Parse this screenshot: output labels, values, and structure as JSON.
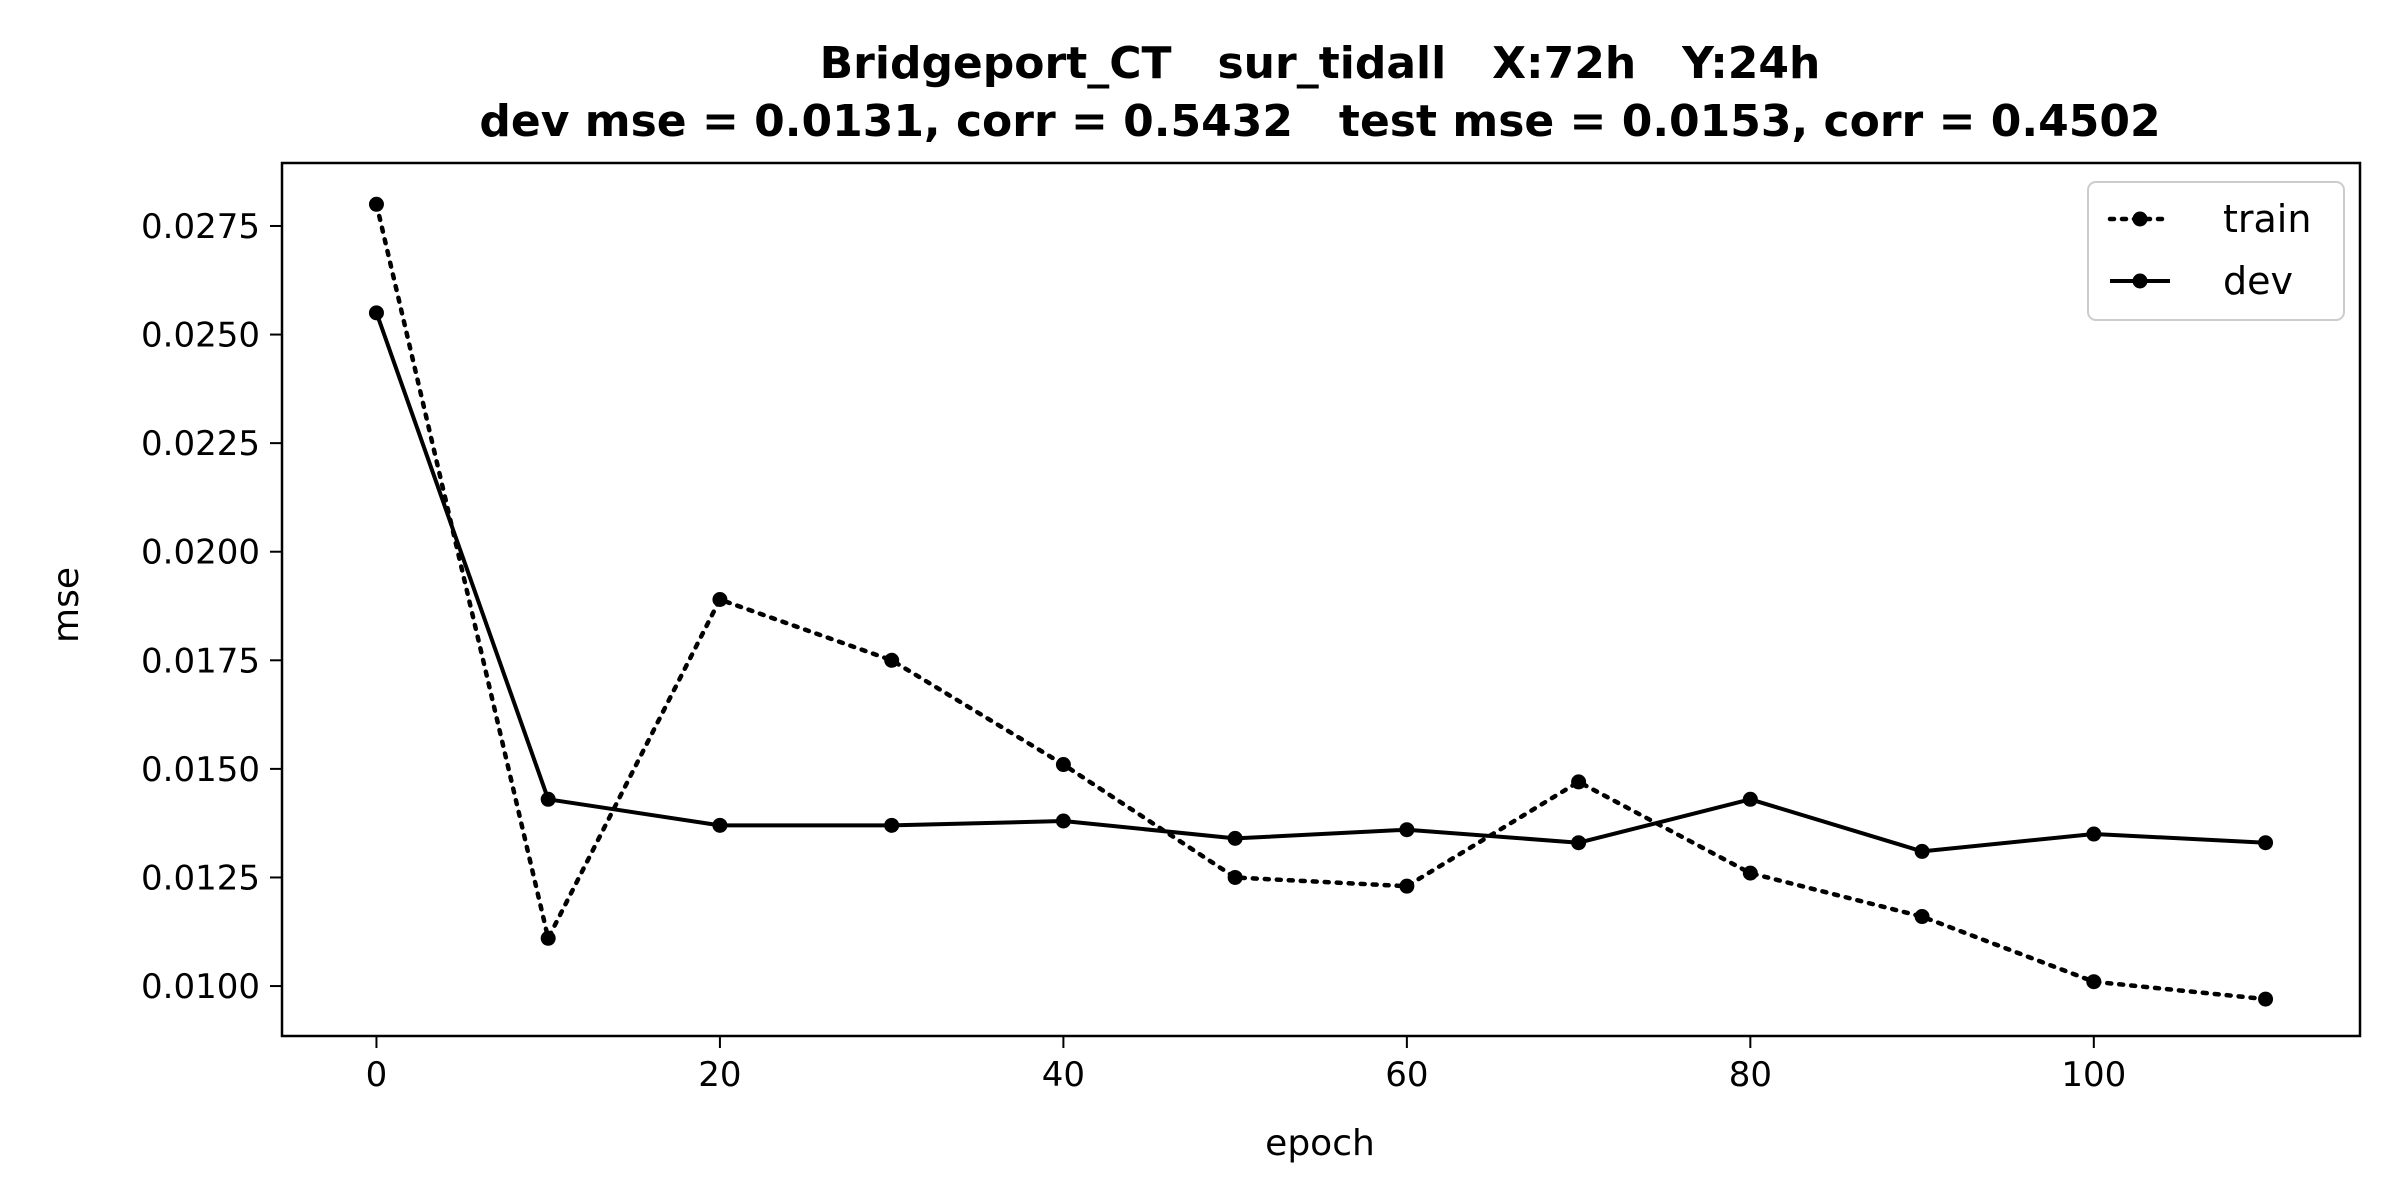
{
  "chart_data": {
    "type": "line",
    "title": "Bridgeport_CT   sur_tidall   X:72h   Y:24h",
    "subtitle": "dev mse = 0.0131, corr = 0.5432   test mse = 0.0153, corr = 0.4502",
    "xlabel": "epoch",
    "ylabel": "mse",
    "xlim": [
      -5.5,
      115.5
    ],
    "ylim": [
      0.00885,
      0.02895
    ],
    "x_ticks": [
      0,
      20,
      40,
      60,
      80,
      100
    ],
    "x_tick_labels": [
      "0",
      "20",
      "40",
      "60",
      "80",
      "100"
    ],
    "y_ticks": [
      0.01,
      0.0125,
      0.015,
      0.0175,
      0.02,
      0.0225,
      0.025,
      0.0275
    ],
    "y_tick_labels": [
      "0.0100",
      "0.0125",
      "0.0150",
      "0.0175",
      "0.0200",
      "0.0225",
      "0.0250",
      "0.0275"
    ],
    "grid": false,
    "legend_position": "top-right",
    "x": [
      0,
      10,
      20,
      30,
      40,
      50,
      60,
      70,
      80,
      90,
      100,
      110
    ],
    "series": [
      {
        "name": "train",
        "style": "dotted",
        "marker": "dot",
        "color": "#000000",
        "values": [
          0.028,
          0.0111,
          0.0189,
          0.0175,
          0.0151,
          0.0125,
          0.0123,
          0.0147,
          0.0126,
          0.0116,
          0.0101,
          0.0097
        ]
      },
      {
        "name": "dev",
        "style": "solid",
        "marker": "dot",
        "color": "#000000",
        "values": [
          0.0255,
          0.0143,
          0.0137,
          0.0137,
          0.0138,
          0.0134,
          0.0136,
          0.0133,
          0.0143,
          0.0131,
          0.0135,
          0.0133
        ]
      }
    ]
  }
}
